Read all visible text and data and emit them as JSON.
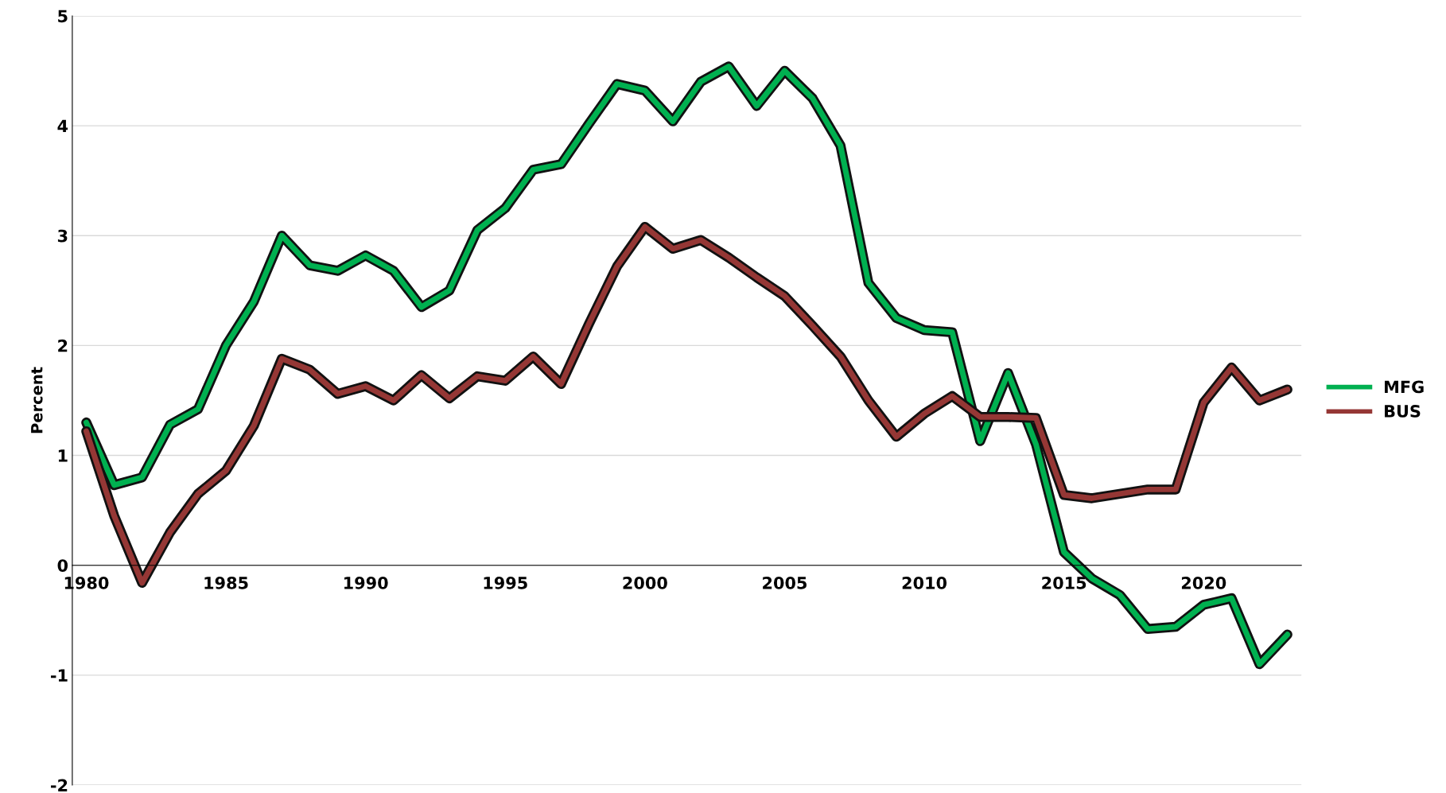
{
  "chart_data": {
    "type": "line",
    "ylabel": "Percent",
    "x": [
      1980,
      1981,
      1982,
      1983,
      1984,
      1985,
      1986,
      1987,
      1988,
      1989,
      1990,
      1991,
      1992,
      1993,
      1994,
      1995,
      1996,
      1997,
      1998,
      1999,
      2000,
      2001,
      2002,
      2003,
      2004,
      2005,
      2006,
      2007,
      2008,
      2009,
      2010,
      2011,
      2012,
      2013,
      2014,
      2015,
      2016,
      2017,
      2018,
      2019,
      2020,
      2021,
      2022,
      2023
    ],
    "series": [
      {
        "name": "MFG",
        "color": "#00b050",
        "values": [
          1.3,
          0.73,
          0.8,
          1.28,
          1.42,
          2.0,
          2.4,
          3.0,
          2.73,
          2.68,
          2.82,
          2.68,
          2.35,
          2.5,
          3.05,
          3.25,
          3.6,
          3.65,
          4.02,
          4.38,
          4.32,
          4.04,
          4.4,
          4.54,
          4.18,
          4.5,
          4.25,
          3.82,
          2.57,
          2.25,
          2.14,
          2.12,
          1.13,
          1.75,
          1.1,
          0.12,
          -0.12,
          -0.27,
          -0.58,
          -0.56,
          -0.36,
          -0.3,
          -0.9,
          -0.63
        ]
      },
      {
        "name": "BUS",
        "color": "#953735",
        "values": [
          1.22,
          0.45,
          -0.16,
          0.3,
          0.65,
          0.86,
          1.27,
          1.88,
          1.78,
          1.56,
          1.63,
          1.5,
          1.73,
          1.52,
          1.72,
          1.68,
          1.9,
          1.65,
          2.2,
          2.72,
          3.08,
          2.88,
          2.96,
          2.8,
          2.62,
          2.45,
          2.18,
          1.9,
          1.5,
          1.17,
          1.38,
          1.54,
          1.35,
          1.35,
          1.34,
          0.64,
          0.61,
          0.65,
          0.69,
          0.69,
          1.48,
          1.8,
          1.5,
          1.6
        ]
      }
    ],
    "xlim": [
      1979.5,
      2023.5
    ],
    "xticks": [
      1980,
      1985,
      1990,
      1995,
      2000,
      2005,
      2010,
      2015,
      2020
    ],
    "ylim": [
      -2,
      5
    ],
    "yticks": [
      -2,
      -1,
      0,
      1,
      2,
      3,
      4,
      5
    ],
    "grid": "y",
    "legend": "right",
    "line_style": "solid",
    "marker": "none"
  }
}
